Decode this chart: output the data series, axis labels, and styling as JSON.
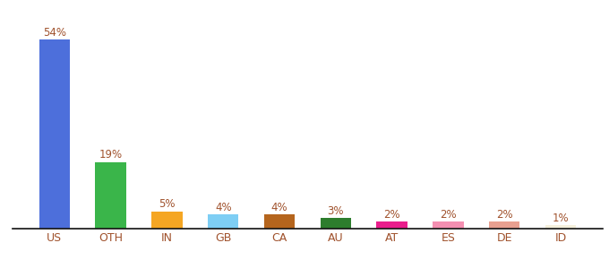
{
  "categories": [
    "US",
    "OTH",
    "IN",
    "GB",
    "CA",
    "AU",
    "AT",
    "ES",
    "DE",
    "ID"
  ],
  "values": [
    54,
    19,
    5,
    4,
    4,
    3,
    2,
    2,
    2,
    1
  ],
  "bar_colors": [
    "#4d6fdb",
    "#3ab54a",
    "#f5a623",
    "#7ecef4",
    "#b5651d",
    "#2d7d2d",
    "#e91e8c",
    "#f48fb1",
    "#e8a090",
    "#f5f0dc"
  ],
  "label_color": "#a0522d",
  "xlabel_color": "#a0522d",
  "ylim": [
    0,
    60
  ],
  "bar_width": 0.55,
  "label_fontsize": 8.5,
  "xlabel_fontsize": 9
}
